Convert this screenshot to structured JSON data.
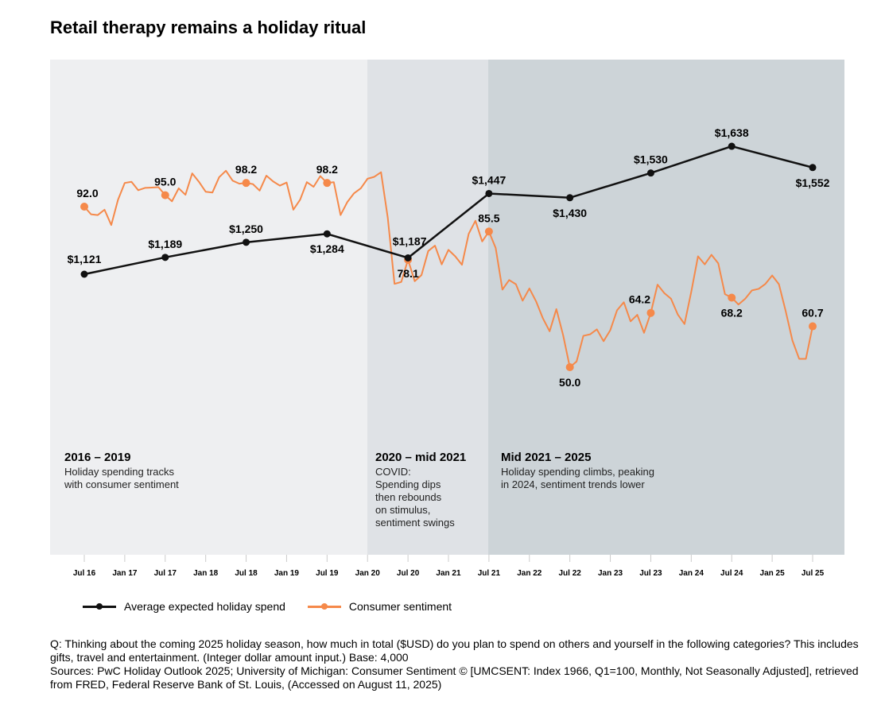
{
  "title": "Retail therapy remains a holiday ritual",
  "colors": {
    "spend": "#111111",
    "sentiment": "#f5894a",
    "region1": "#eeeff1",
    "region2": "#dfe2e6",
    "region3": "#cdd4d8"
  },
  "regions": [
    {
      "heading": "2016 – 2019",
      "lines": [
        "Holiday spending tracks",
        "with consumer sentiment"
      ]
    },
    {
      "heading": "2020 – mid 2021",
      "lines": [
        "COVID:",
        "Spending dips",
        "then rebounds",
        "on stimulus,",
        "sentiment swings"
      ]
    },
    {
      "heading": "Mid 2021 – 2025",
      "lines": [
        "Holiday spending climbs, peaking",
        "in 2024, sentiment trends lower"
      ]
    }
  ],
  "legend": {
    "spend": "Average expected holiday spend",
    "sentiment": "Consumer sentiment"
  },
  "notes": [
    "Q: Thinking about the coming 2025 holiday season, how much in total ($USD) do you plan to spend on others and yourself in the following categories? This includes gifts, travel and entertainment. (Integer dollar amount input.) Base: 4,000",
    "Sources: PwC Holiday Outlook 2025; University of Michigan: Consumer Sentiment © [UMCSENT: Index 1966, Q1=100, Monthly, Not Seasonally Adjusted], retrieved from FRED, Federal Reserve Bank of St. Louis, (Accessed on August 11, 2025)"
  ],
  "chart_data": {
    "type": "line",
    "title": "Retail therapy remains a holiday ritual",
    "x_ticks": [
      "Jul 16",
      "Jan 17",
      "Jul 17",
      "Jan 18",
      "Jul 18",
      "Jan 19",
      "Jul 19",
      "Jan 20",
      "Jul 20",
      "Jan 21",
      "Jul 21",
      "Jan 22",
      "Jul 22",
      "Jan 23",
      "Jul 23",
      "Jan 24",
      "Jul 24",
      "Jan 25",
      "Jul 25"
    ],
    "series": [
      {
        "name": "Average expected holiday spend",
        "x": [
          "Jul 16",
          "Jul 17",
          "Jul 18",
          "Jul 19",
          "Jul 20",
          "Jul 21",
          "Jul 22",
          "Jul 23",
          "Jul 24",
          "Jul 25"
        ],
        "values": [
          1121,
          1189,
          1250,
          1284,
          1187,
          1447,
          1430,
          1530,
          1638,
          1552
        ],
        "labels": [
          "$1,121",
          "$1,189",
          "$1,250",
          "$1,284",
          "$1,187",
          "$1,447",
          "$1,430",
          "$1,530",
          "$1,638",
          "$1,552"
        ]
      },
      {
        "name": "Consumer sentiment",
        "start": "Jul 16",
        "frequency": "monthly",
        "values": [
          92.0,
          90.0,
          89.8,
          91.2,
          87.2,
          93.8,
          98.2,
          98.5,
          96.3,
          96.9,
          97.0,
          97.1,
          95.0,
          93.4,
          96.8,
          95.1,
          100.7,
          98.5,
          95.9,
          95.7,
          99.7,
          101.4,
          98.8,
          98.0,
          98.2,
          97.9,
          96.2,
          100.1,
          98.6,
          97.5,
          98.3,
          91.2,
          93.8,
          98.4,
          97.2,
          100.0,
          98.2,
          98.4,
          89.8,
          93.2,
          95.5,
          96.8,
          99.3,
          99.8,
          101.0,
          89.1,
          71.8,
          72.3,
          78.1,
          72.5,
          74.1,
          80.4,
          81.8,
          76.9,
          80.7,
          79.0,
          76.8,
          84.9,
          88.3,
          82.9,
          85.5,
          81.2,
          70.3,
          72.8,
          71.7,
          67.4,
          70.6,
          67.2,
          62.8,
          59.4,
          65.2,
          58.4,
          50.0,
          51.5,
          58.2,
          58.6,
          59.9,
          56.8,
          59.7,
          64.9,
          67.0,
          62.0,
          63.7,
          59.0,
          64.2,
          71.6,
          69.4,
          67.9,
          63.8,
          61.3,
          69.7,
          79.0,
          76.9,
          79.4,
          77.2,
          69.1,
          68.2,
          66.4,
          67.9,
          70.1,
          70.5,
          71.8,
          74.0,
          71.7,
          64.7,
          57.0,
          52.2,
          52.2,
          60.7
        ],
        "highlight_x": [
          "Jul 16",
          "Jul 17",
          "Jul 18",
          "Jul 19",
          "Jul 20",
          "Jul 21",
          "Jul 22",
          "Jul 23",
          "Jul 24",
          "Jul 25"
        ],
        "highlight_labels": [
          "92.0",
          "95.0",
          "98.2",
          "98.2",
          "78.1",
          "85.5",
          "50.0",
          "64.2",
          "68.2",
          "60.7"
        ]
      }
    ],
    "legend": "bottom-left",
    "grid": false
  }
}
